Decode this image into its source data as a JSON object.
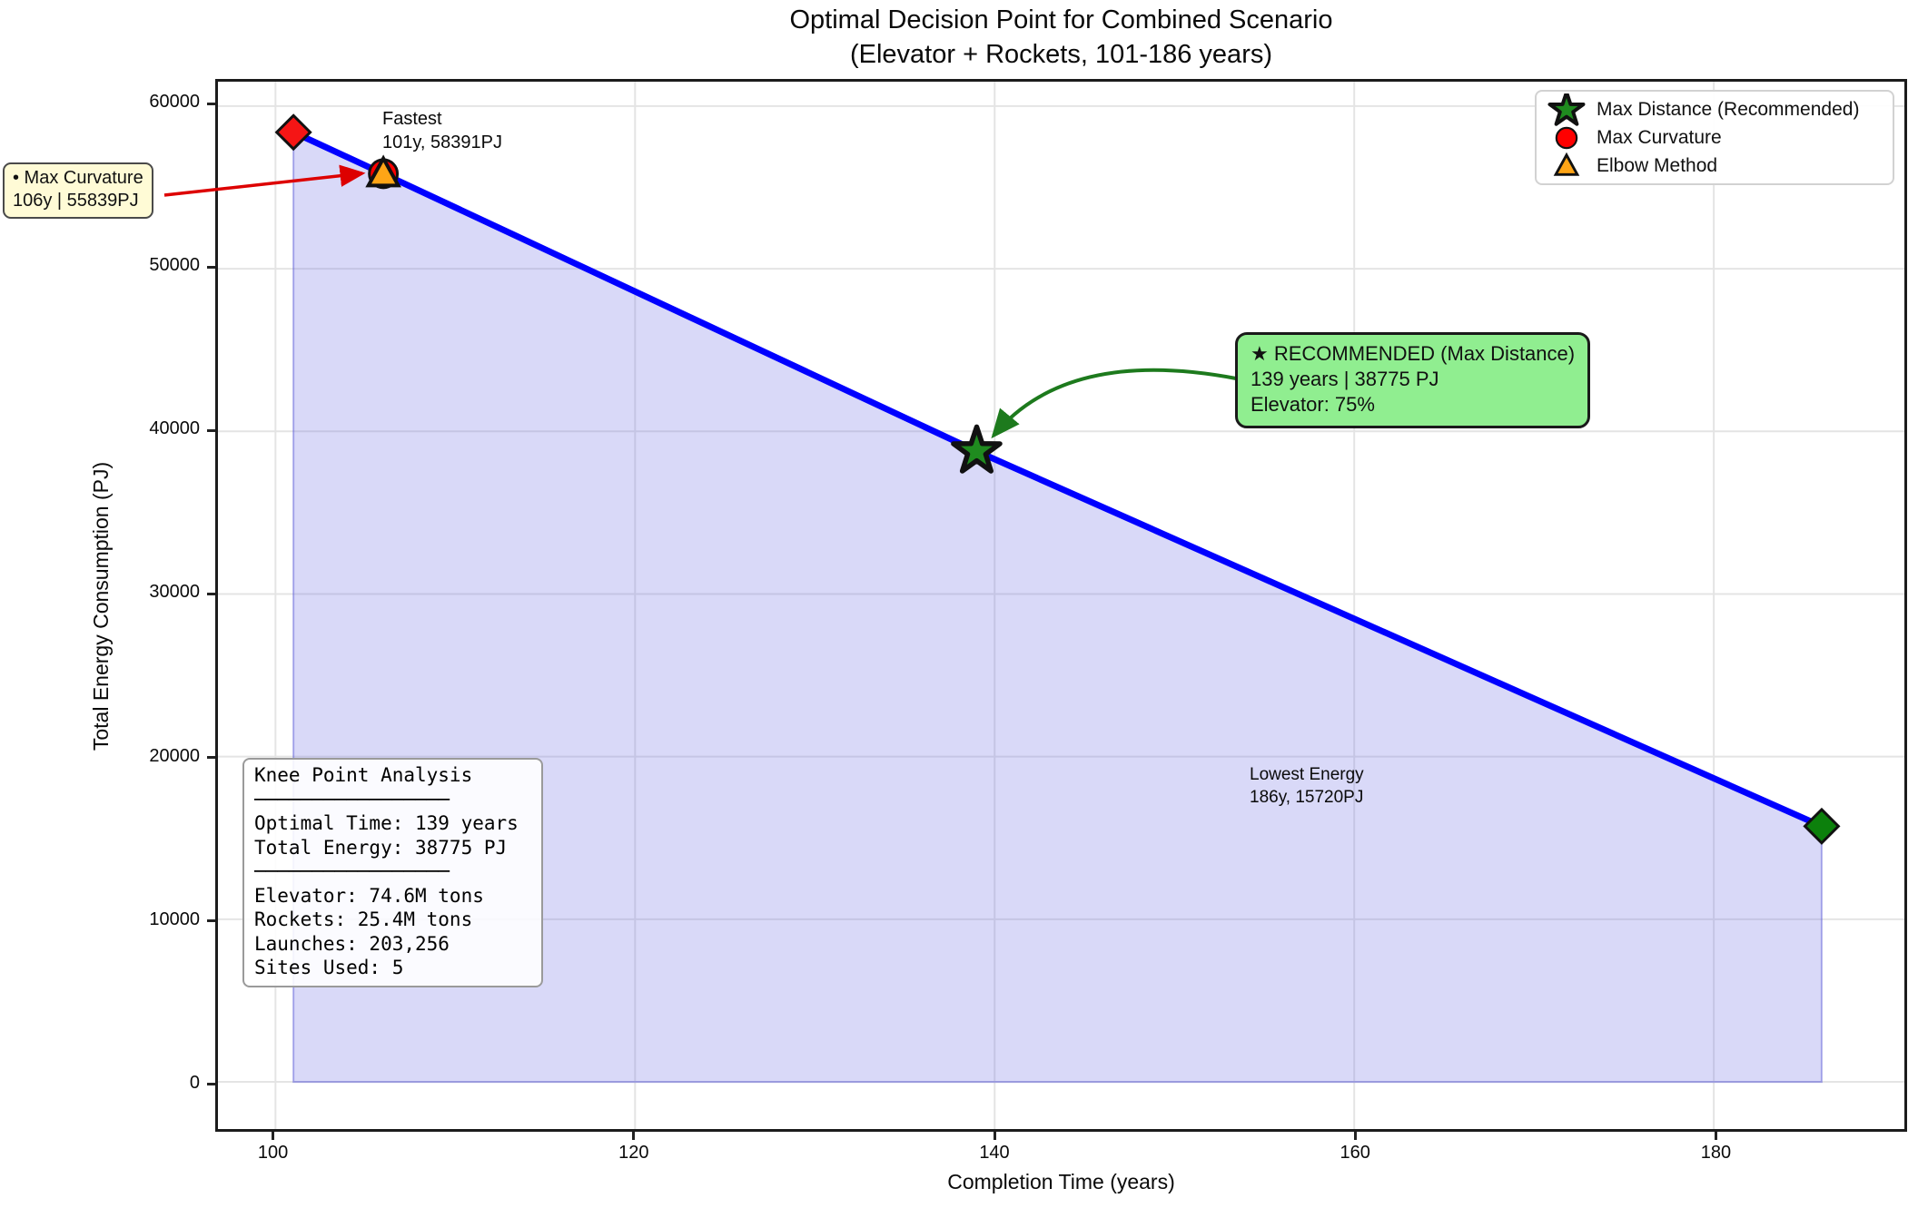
{
  "title": {
    "line1": "Optimal Decision Point for Combined Scenario",
    "line2": "(Elevator + Rockets, 101-186 years)"
  },
  "axes": {
    "xlabel": "Completion Time (years)",
    "ylabel": "Total Energy Consumption (PJ)"
  },
  "chart_data": {
    "type": "line",
    "title": "Optimal Decision Point for Combined Scenario (Elevator + Rockets, 101-186 years)",
    "xlabel": "Completion Time (years)",
    "ylabel": "Total Energy Consumption (PJ)",
    "xlim": [
      96.8,
      190.6
    ],
    "ylim": [
      -2900,
      61500
    ],
    "xticks": [
      100,
      120,
      140,
      160,
      180
    ],
    "yticks": [
      0,
      10000,
      20000,
      30000,
      40000,
      50000,
      60000
    ],
    "grid": true,
    "legend_position": "upper right",
    "series": [
      {
        "name": "Total energy vs completion time",
        "x": [
          101,
          106,
          139,
          186
        ],
        "y": [
          58391,
          55839,
          38775,
          15720
        ],
        "color": "#0000ff",
        "fill_to_zero": true,
        "fill_color": "rgba(102,102,226,0.25)",
        "fill_edge_color": "rgba(95,95,215,0.5)"
      }
    ],
    "points": [
      {
        "label": "Fastest",
        "x": 101,
        "y": 58391,
        "marker": "diamond",
        "color": "#f51515"
      },
      {
        "label": "Max Curvature",
        "x": 106,
        "y": 55839,
        "marker": "circle",
        "color": "#ff0000"
      },
      {
        "label": "Elbow Method",
        "x": 106,
        "y": 55839,
        "marker": "triangle",
        "color": "#ffa516"
      },
      {
        "label": "Recommended (Max Distance)",
        "x": 139,
        "y": 38775,
        "marker": "star",
        "color": "#1f8b1f"
      },
      {
        "label": "Lowest Energy",
        "x": 186,
        "y": 15720,
        "marker": "diamond",
        "color": "#0c800c"
      }
    ]
  },
  "legend": {
    "items": [
      {
        "marker": "star",
        "color": "#1f8b1f",
        "label": "Max Distance (Recommended)"
      },
      {
        "marker": "circle",
        "color": "#ff0000",
        "label": "Max Curvature"
      },
      {
        "marker": "triangle",
        "color": "#ffa516",
        "label": "Elbow Method"
      }
    ]
  },
  "annotations": {
    "fastest_label": {
      "line1": "Fastest",
      "line2": "101y, 58391PJ"
    },
    "lowest_label": {
      "line1": "Lowest Energy",
      "line2": "186y, 15720PJ"
    },
    "max_curvature_box": {
      "line1": "• Max Curvature",
      "line2": "106y | 55839PJ"
    },
    "recommended_box": {
      "line1": "★ RECOMMENDED (Max Distance)",
      "line2": "139 years | 38775 PJ",
      "line3": "Elevator: 75%"
    },
    "knee_box": {
      "lines": [
        "Knee Point Analysis",
        "─────────────────",
        "Optimal Time: 139 years",
        "Total Energy: 38775 PJ",
        "─────────────────",
        "Elevator: 74.6M tons",
        "Rockets: 25.4M tons",
        "Launches: 203,256",
        "Sites Used: 5"
      ]
    }
  },
  "colors": {
    "line": "#0000ff",
    "grid": "#e4e4e4",
    "spine": "#1c1c1c",
    "recommended_bg": "#90ee90",
    "curvature_bg": "#fffbd6",
    "red_arrow": "#dd0000",
    "green_arrow": "#1d7a1d"
  }
}
